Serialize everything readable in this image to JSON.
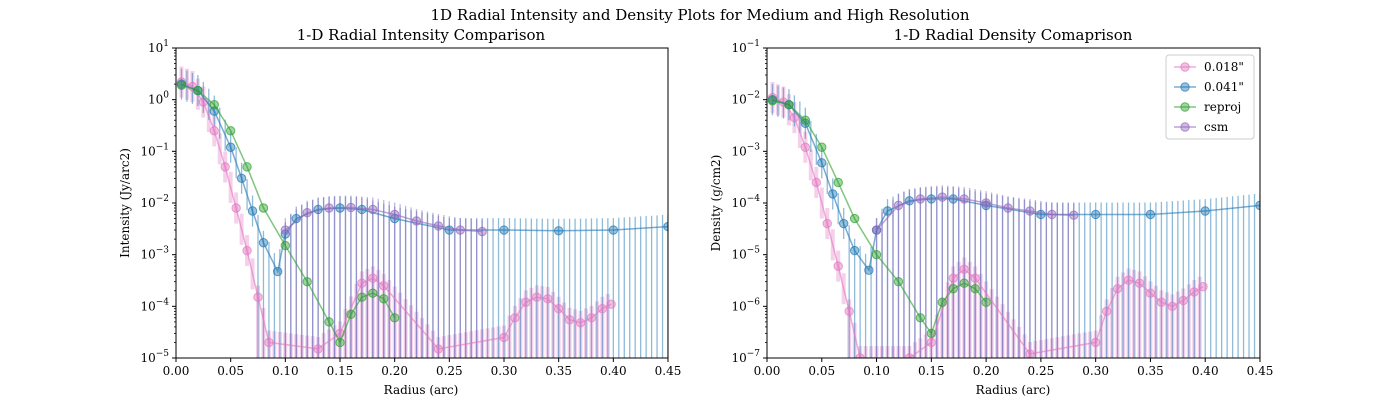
{
  "suptitle": "1D Radial Intensity and Density Plots for Medium and High Resolution",
  "colors": {
    "s018": "#e377c2",
    "s041": "#1f77b4",
    "reproj": "#2ca02c",
    "csm": "#9467bd"
  },
  "chart_data": [
    {
      "type": "line",
      "title": "1-D Radial Intensity Comparison",
      "xlabel": "Radius (arc)",
      "ylabel": "Intensity (Jy/arc2)",
      "xlim": [
        0.0,
        0.45
      ],
      "ylim": [
        1e-05,
        10
      ],
      "yscale": "log",
      "grid": false,
      "xticks": [
        "0.00",
        "0.05",
        "0.10",
        "0.15",
        "0.20",
        "0.25",
        "0.30",
        "0.35",
        "0.40",
        "0.45"
      ],
      "yticks": [
        "10^-5",
        "10^-4",
        "10^-3",
        "10^-2",
        "10^-1",
        "10^0",
        "10^1"
      ],
      "series": [
        {
          "name": "0.018\"",
          "color": "#e377c2",
          "marker": "circle",
          "errorbars": true,
          "x": [
            0.005,
            0.015,
            0.025,
            0.035,
            0.045,
            0.055,
            0.065,
            0.075,
            0.085,
            0.13,
            0.15,
            0.17,
            0.18,
            0.19,
            0.24,
            0.3,
            0.31,
            0.32,
            0.33,
            0.34,
            0.35,
            0.36,
            0.37,
            0.38,
            0.39,
            0.398
          ],
          "y": [
            2.2,
            1.8,
            0.9,
            0.25,
            0.05,
            0.008,
            0.0012,
            0.00015,
            2e-05,
            1.5e-05,
            3e-05,
            0.00028,
            0.00035,
            0.00025,
            1.5e-05,
            2.5e-05,
            6e-05,
            0.00012,
            0.00015,
            0.00014,
            9e-05,
            5.5e-05,
            4.8e-05,
            6e-05,
            9e-05,
            0.00011
          ]
        },
        {
          "name": "0.041\"",
          "color": "#1f77b4",
          "marker": "circle",
          "errorbars": true,
          "x": [
            0.005,
            0.02,
            0.035,
            0.05,
            0.06,
            0.07,
            0.08,
            0.093,
            0.1,
            0.11,
            0.13,
            0.15,
            0.17,
            0.2,
            0.25,
            0.3,
            0.35,
            0.4,
            0.45
          ],
          "y": [
            2.0,
            1.5,
            0.6,
            0.12,
            0.03,
            0.007,
            0.0017,
            0.00047,
            0.0025,
            0.005,
            0.0075,
            0.008,
            0.0075,
            0.005,
            0.003,
            0.003,
            0.0029,
            0.003,
            0.0035
          ]
        },
        {
          "name": "reproj",
          "color": "#2ca02c",
          "marker": "circle",
          "errorbars": false,
          "x": [
            0.005,
            0.02,
            0.035,
            0.05,
            0.065,
            0.08,
            0.1,
            0.12,
            0.14,
            0.15,
            0.16,
            0.17,
            0.18,
            0.19,
            0.2
          ],
          "y": [
            1.9,
            1.5,
            0.8,
            0.25,
            0.05,
            0.008,
            0.0015,
            0.0003,
            5e-05,
            2e-05,
            7e-05,
            0.00015,
            0.00018,
            0.00014,
            6e-05
          ]
        },
        {
          "name": "csm",
          "color": "#9467bd",
          "marker": "circle",
          "errorbars": true,
          "x": [
            0.1,
            0.12,
            0.14,
            0.16,
            0.18,
            0.2,
            0.22,
            0.24,
            0.26,
            0.28
          ],
          "y": [
            0.003,
            0.0065,
            0.008,
            0.0082,
            0.0075,
            0.006,
            0.0045,
            0.0036,
            0.003,
            0.0028
          ]
        }
      ]
    },
    {
      "type": "line",
      "title": "1-D Radial Density Comaprison",
      "xlabel": "Radius (arc)",
      "ylabel": "Density (g/cm2)",
      "xlim": [
        0.0,
        0.45
      ],
      "ylim": [
        1e-07,
        0.1
      ],
      "yscale": "log",
      "grid": false,
      "legend_position": "top-right",
      "xticks": [
        "0.00",
        "0.05",
        "0.10",
        "0.15",
        "0.20",
        "0.25",
        "0.30",
        "0.35",
        "0.40",
        "0.45"
      ],
      "yticks": [
        "10^-7",
        "10^-6",
        "10^-5",
        "10^-4",
        "10^-3",
        "10^-2",
        "10^-1"
      ],
      "series": [
        {
          "name": "0.018\"",
          "color": "#e377c2",
          "marker": "circle",
          "errorbars": true,
          "x": [
            0.005,
            0.015,
            0.025,
            0.035,
            0.045,
            0.055,
            0.065,
            0.075,
            0.085,
            0.13,
            0.15,
            0.17,
            0.18,
            0.19,
            0.24,
            0.3,
            0.31,
            0.32,
            0.33,
            0.34,
            0.35,
            0.36,
            0.37,
            0.38,
            0.39,
            0.398
          ],
          "y": [
            0.011,
            0.009,
            0.0045,
            0.0012,
            0.00025,
            4e-05,
            6e-06,
            8e-07,
            1e-07,
            1e-07,
            2e-07,
            3.5e-06,
            5.2e-06,
            3.5e-06,
            1.2e-07,
            2e-07,
            8e-07,
            2.2e-06,
            3.2e-06,
            2.8e-06,
            1.8e-06,
            1.2e-06,
            1e-06,
            1.3e-06,
            1.9e-06,
            2.4e-06
          ]
        },
        {
          "name": "0.041\"",
          "color": "#1f77b4",
          "marker": "circle",
          "errorbars": true,
          "x": [
            0.005,
            0.02,
            0.035,
            0.05,
            0.06,
            0.07,
            0.08,
            0.093,
            0.1,
            0.11,
            0.13,
            0.15,
            0.17,
            0.2,
            0.25,
            0.3,
            0.35,
            0.4,
            0.45
          ],
          "y": [
            0.01,
            0.008,
            0.0035,
            0.0006,
            0.00015,
            4e-05,
            1.2e-05,
            5e-06,
            3e-05,
            7e-05,
            0.00011,
            0.00012,
            0.00012,
            9e-05,
            6e-05,
            6e-05,
            6e-05,
            7e-05,
            9e-05
          ]
        },
        {
          "name": "reproj",
          "color": "#2ca02c",
          "marker": "circle",
          "errorbars": false,
          "x": [
            0.005,
            0.02,
            0.035,
            0.05,
            0.065,
            0.08,
            0.1,
            0.12,
            0.14,
            0.15,
            0.16,
            0.17,
            0.18,
            0.19,
            0.2
          ],
          "y": [
            0.0095,
            0.008,
            0.004,
            0.0012,
            0.00025,
            5e-05,
            1e-05,
            3e-06,
            6e-07,
            3e-07,
            1.2e-06,
            2.2e-06,
            2.8e-06,
            2.2e-06,
            1.2e-06
          ]
        },
        {
          "name": "csm",
          "color": "#9467bd",
          "marker": "circle",
          "errorbars": true,
          "x": [
            0.1,
            0.12,
            0.14,
            0.16,
            0.18,
            0.2,
            0.22,
            0.24,
            0.26,
            0.28
          ],
          "y": [
            3e-05,
            9e-05,
            0.00012,
            0.00013,
            0.00012,
            0.0001,
            8e-05,
            7e-05,
            6e-05,
            5.8e-05
          ]
        }
      ]
    }
  ]
}
